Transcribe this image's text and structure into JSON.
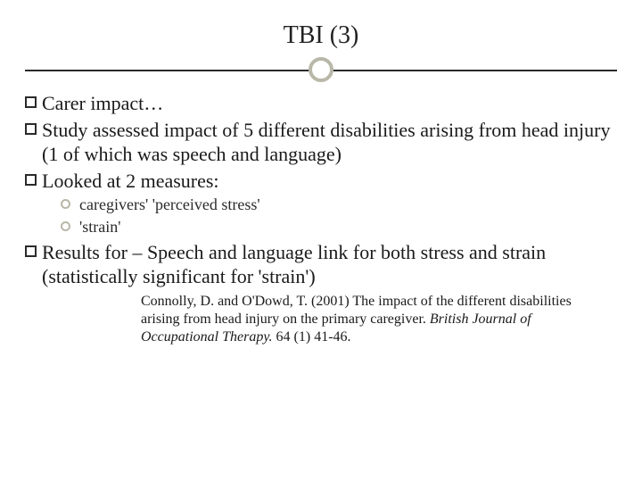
{
  "title": "TBI (3)",
  "bullets": [
    "Carer impact…",
    "Study assessed impact of 5 different disabilities arising from head injury (1 of which was speech and language)",
    "Looked at 2 measures:"
  ],
  "sub_bullets": [
    "caregivers' 'perceived stress'",
    "'strain'"
  ],
  "results_bullet": "Results for – Speech and language link for both stress and strain (statistically significant for 'strain')",
  "citation_line1": "Connolly, D. and O'Dowd, T. (2001) The impact of the different disabilities arising from head injury on the primary caregiver.",
  "citation_journal": "British Journal of Occupational Therapy.",
  "citation_suffix": " 64 (1) 41-46.",
  "colors": {
    "text": "#1a1a1a",
    "accent": "#b9b7a7",
    "line": "#2a2a2a",
    "background": "#ffffff"
  }
}
